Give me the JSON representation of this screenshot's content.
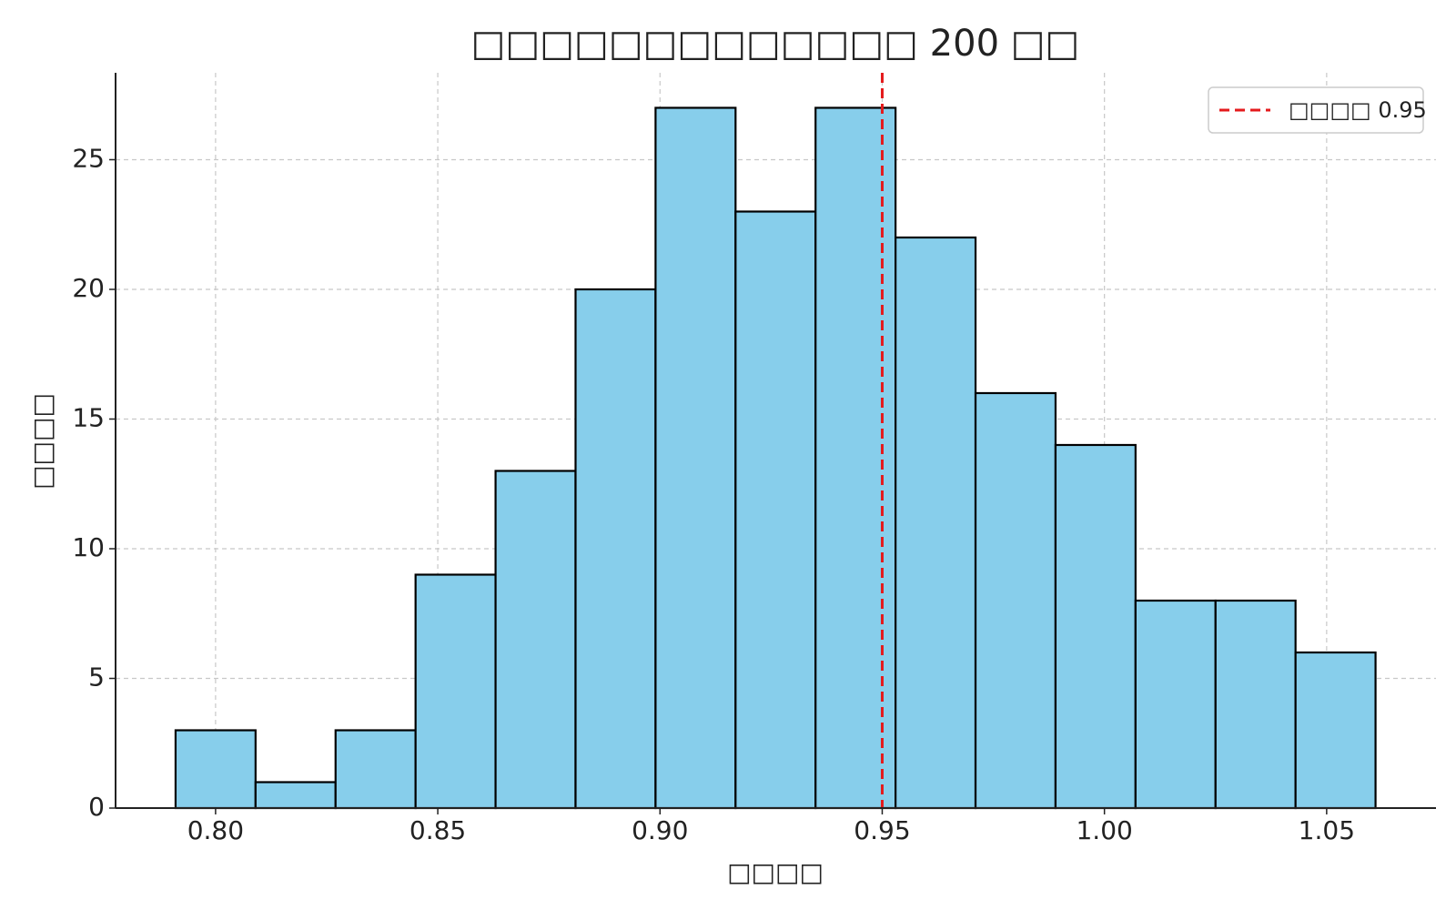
{
  "chart_data": {
    "type": "histogram",
    "title": "□□□□□□□□□□□□□ 200 □□",
    "x_label": "□□□□",
    "y_label": "□□□□",
    "bins": [
      0.791,
      0.809,
      0.827,
      0.845,
      0.863,
      0.881,
      0.899,
      0.917,
      0.935,
      0.953,
      0.971,
      0.989,
      1.007,
      1.025,
      1.043,
      1.061
    ],
    "counts": [
      3,
      1,
      3,
      9,
      13,
      20,
      27,
      23,
      27,
      22,
      16,
      14,
      8,
      8,
      6
    ],
    "color": "#87ceeb",
    "edge_color": "#000000",
    "xlim": [
      0.7775,
      1.0746
    ],
    "ylim": [
      0,
      28.35
    ],
    "xticks": [
      {
        "value": 0.8,
        "label": "0.80"
      },
      {
        "value": 0.85,
        "label": "0.85"
      },
      {
        "value": 0.9,
        "label": "0.90"
      },
      {
        "value": 0.95,
        "label": "0.95"
      },
      {
        "value": 1.0,
        "label": "1.00"
      },
      {
        "value": 1.05,
        "label": "1.05"
      }
    ],
    "yticks": [
      0,
      5,
      10,
      15,
      20,
      25
    ],
    "grid": true,
    "legend_position": "upper right",
    "reference_line": {
      "value": 0.95,
      "label": "□□□□ 0.95",
      "color": "#e41a1c"
    }
  }
}
